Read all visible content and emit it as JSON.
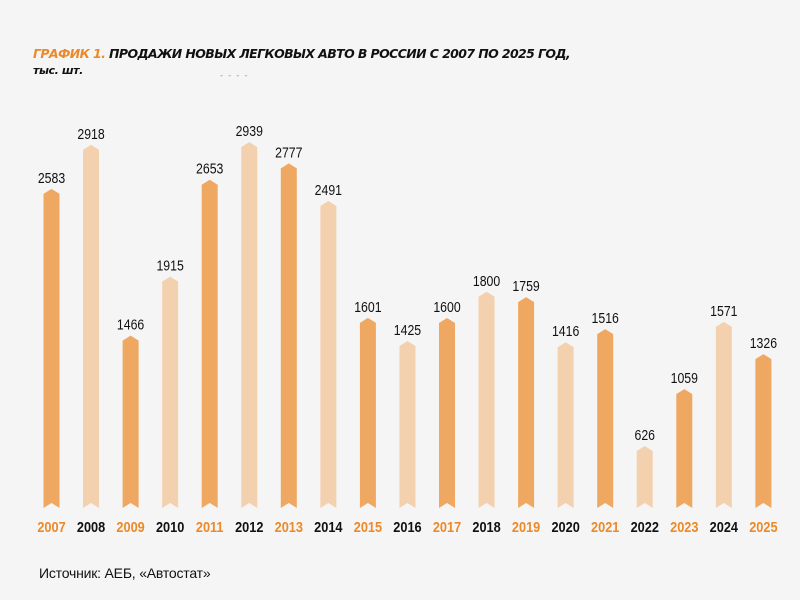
{
  "header": {
    "title_accent": "ГРАФИК 1.",
    "title_main": " ПРОДАЖИ НОВЫХ ЛЕГКОВЫХ АВТО В РОССИИ С 2007 ПО 2025 ГОД,",
    "subtitle": "тыс. шт.",
    "decoration": "- - - -"
  },
  "source": "Источник: АЕБ, «Автостат»",
  "colors": {
    "dark_bar": "#efa862",
    "light_bar": "#f4d1ae",
    "accent_label": "#ec8a2a",
    "normal_label": "#111111",
    "value_label": "#111111",
    "background": "#f5f5f5"
  },
  "chart_data": {
    "type": "bar",
    "title": "ГРАФИК 1. ПРОДАЖИ НОВЫХ ЛЕГКОВЫХ АВТО В РОССИИ С 2007 ПО 2025 ГОД, тыс. шт.",
    "xlabel": "",
    "ylabel": "тыс. шт.",
    "categories": [
      "2007",
      "2008",
      "2009",
      "2010",
      "2011",
      "2012",
      "2013",
      "2014",
      "2015",
      "2016",
      "2017",
      "2018",
      "2019",
      "2020",
      "2021",
      "2022",
      "2023",
      "2024",
      "2025"
    ],
    "values": [
      2583,
      2918,
      1466,
      1915,
      2653,
      2939,
      2777,
      2491,
      1601,
      1425,
      1600,
      1800,
      1759,
      1416,
      1516,
      626,
      1059,
      1571,
      1326
    ],
    "bar_style": [
      "dark",
      "light",
      "dark",
      "light",
      "dark",
      "light",
      "dark",
      "light",
      "dark",
      "light",
      "dark",
      "light",
      "dark",
      "light",
      "dark",
      "light",
      "dark",
      "light",
      "dark"
    ],
    "grid": false,
    "axes_visible": false,
    "data_labels": true,
    "source": "Источник: АЕБ, «Автостат»"
  }
}
